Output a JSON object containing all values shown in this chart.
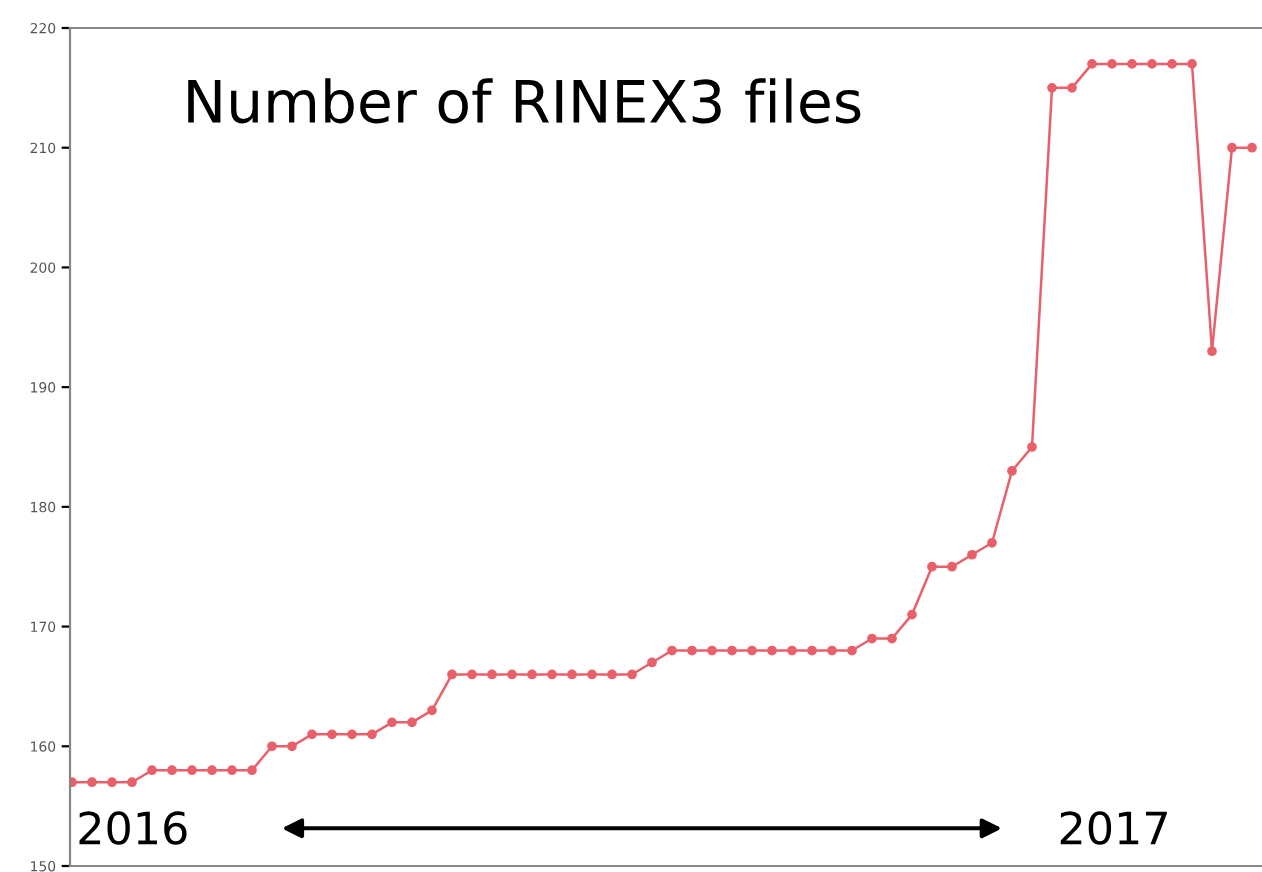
{
  "chart_data": {
    "type": "line",
    "title": "Number of RINEX3 files",
    "categories": [
      null,
      null,
      null,
      null,
      null,
      null,
      null,
      null,
      null,
      null,
      null,
      null,
      null,
      null,
      null,
      null,
      null,
      null,
      null,
      null,
      null,
      null,
      null,
      null,
      null,
      null,
      null,
      null,
      null,
      null,
      null,
      null,
      null,
      null,
      null,
      null,
      null,
      null,
      null,
      null,
      null,
      null,
      null,
      null,
      null,
      null,
      null,
      null,
      null,
      null,
      null,
      null,
      null,
      null,
      null,
      null,
      null,
      null,
      null,
      null
    ],
    "series": [
      {
        "color": "#e8606a",
        "values": [
          157,
          157,
          157,
          157,
          158,
          158,
          158,
          158,
          158,
          158,
          160,
          160,
          161,
          161,
          161,
          161,
          162,
          162,
          163,
          166,
          166,
          166,
          166,
          166,
          166,
          166,
          166,
          166,
          166,
          167,
          168,
          168,
          168,
          168,
          168,
          168,
          168,
          168,
          168,
          168,
          169,
          169,
          171,
          175,
          175,
          176,
          177,
          183,
          185,
          215,
          215,
          217,
          217,
          217,
          217,
          217,
          217,
          193,
          210,
          210
        ]
      }
    ],
    "ylim": [
      150,
      220
    ],
    "yticks": [
      150,
      160,
      170,
      180,
      190,
      200,
      210,
      220
    ],
    "annotations": [
      "2016",
      "2017"
    ],
    "marker": "circle",
    "line_style": "solid",
    "grid": false,
    "legend": false
  }
}
